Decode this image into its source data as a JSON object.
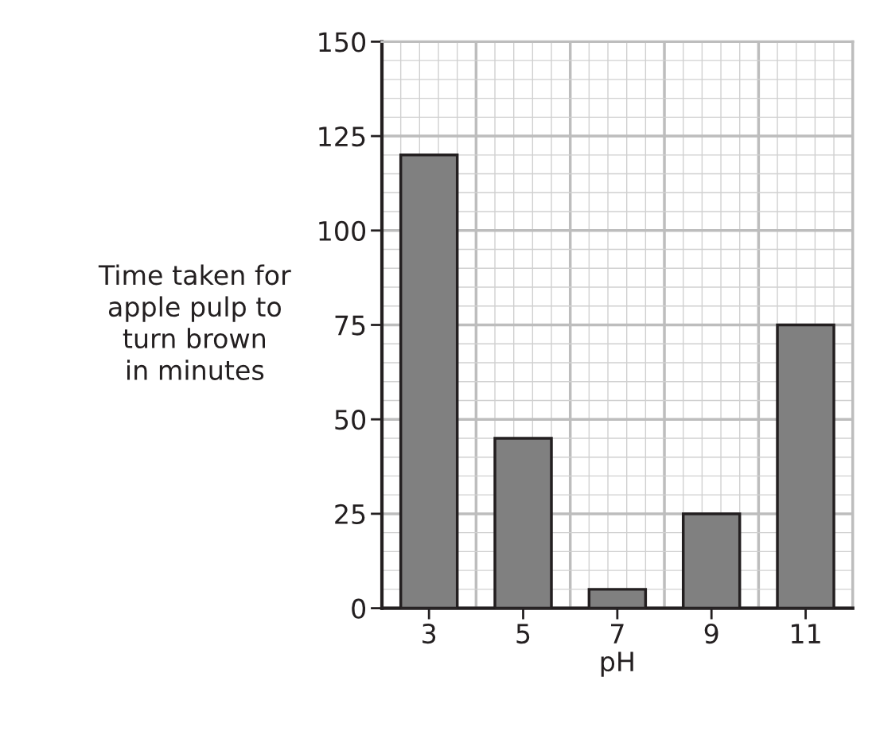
{
  "chart_data": {
    "type": "bar",
    "categories": [
      "3",
      "5",
      "7",
      "9",
      "11"
    ],
    "values": [
      120,
      45,
      5,
      25,
      75
    ],
    "color": "#808080",
    "xlabel": "pH",
    "ylabel": "Time taken for\napple pulp to\nturn brown\nin minutes",
    "ylim": [
      0,
      150
    ],
    "yticks": [
      0,
      25,
      50,
      75,
      100,
      125,
      150
    ],
    "grid": true
  }
}
